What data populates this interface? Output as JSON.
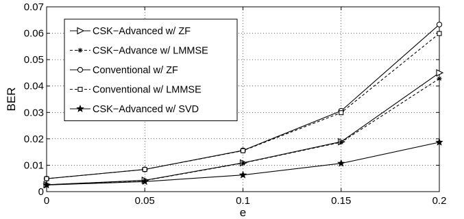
{
  "chart_data": {
    "type": "line",
    "title": "",
    "xlabel": "e",
    "ylabel": "BER",
    "x": [
      0,
      0.05,
      0.1,
      0.15,
      0.2
    ],
    "xlim": [
      0,
      0.2
    ],
    "ylim": [
      0,
      0.07
    ],
    "xticks": [
      "0",
      "0.05",
      "0.1",
      "0.15",
      "0.2"
    ],
    "yticks": [
      "0",
      "0.01",
      "0.02",
      "0.03",
      "0.04",
      "0.05",
      "0.06",
      "0.07"
    ],
    "grid": true,
    "legend_position": "top-left",
    "series": [
      {
        "name": "CSK−Advanced w/ ZF",
        "values": [
          0.0026,
          0.0043,
          0.0109,
          0.0189,
          0.045
        ],
        "marker": "triangle-right",
        "line": "solid"
      },
      {
        "name": "CSK−Advance w/ LMMSE",
        "values": [
          0.0026,
          0.0042,
          0.0108,
          0.0187,
          0.0428
        ],
        "marker": "asterisk",
        "line": "dashed"
      },
      {
        "name": "Conventional w/ ZF",
        "values": [
          0.0049,
          0.0084,
          0.0156,
          0.0306,
          0.0633
        ],
        "marker": "circle",
        "line": "solid"
      },
      {
        "name": "Conventional w/ LMMSE",
        "values": [
          0.0049,
          0.0084,
          0.0155,
          0.0299,
          0.0599
        ],
        "marker": "square",
        "line": "dashed"
      },
      {
        "name": "CSK−Advanced w/ SVD",
        "values": [
          0.0025,
          0.0038,
          0.0063,
          0.0107,
          0.0187
        ],
        "marker": "star",
        "line": "solid"
      }
    ]
  }
}
